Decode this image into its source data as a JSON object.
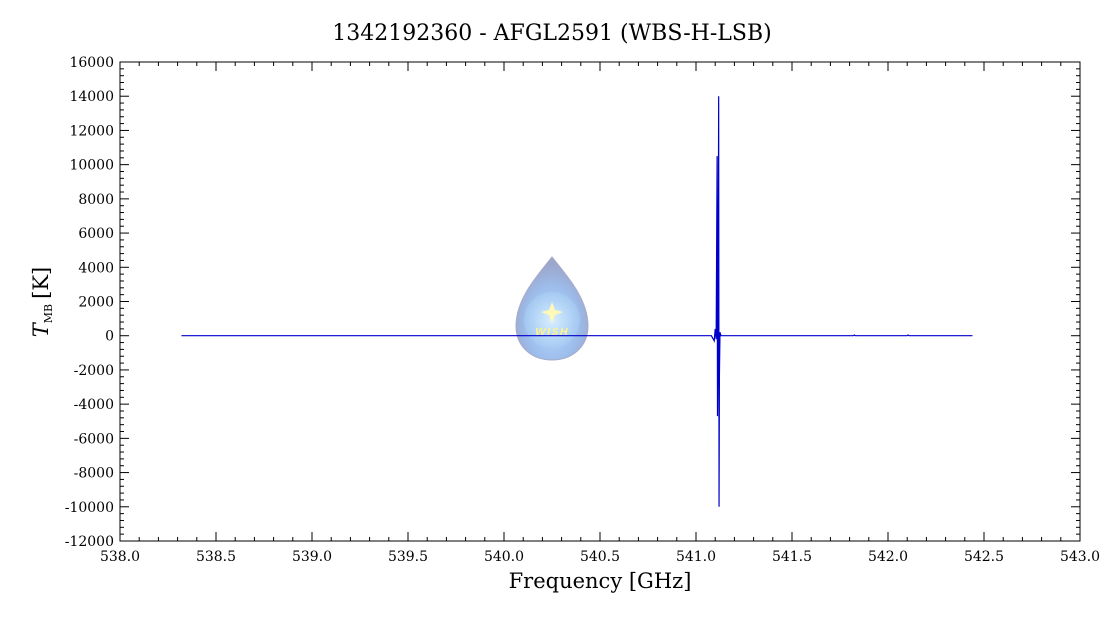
{
  "chart_data": {
    "type": "line",
    "title": "1342192360 - AFGL2591 (WBS-H-LSB)",
    "xlabel": "Frequency [GHz]",
    "ylabel_main": "T",
    "ylabel_sub": "MB",
    "ylabel_unit": "[K]",
    "xlim": [
      538.0,
      543.0
    ],
    "ylim": [
      -12000,
      16000
    ],
    "xticks": [
      538.0,
      538.5,
      539.0,
      539.5,
      540.0,
      540.5,
      541.0,
      541.5,
      542.0,
      542.5,
      543.0
    ],
    "xtick_labels": [
      "538.0",
      "538.5",
      "539.0",
      "539.5",
      "540.0",
      "540.5",
      "541.0",
      "541.5",
      "542.0",
      "542.5",
      "543.0"
    ],
    "yticks": [
      -12000,
      -10000,
      -8000,
      -6000,
      -4000,
      -2000,
      0,
      2000,
      4000,
      6000,
      8000,
      10000,
      12000,
      14000,
      16000
    ],
    "ytick_labels": [
      "-12000",
      "-10000",
      "-8000",
      "-6000",
      "-4000",
      "-2000",
      "0",
      "2000",
      "4000",
      "6000",
      "8000",
      "10000",
      "12000",
      "14000",
      "16000"
    ],
    "grid": false,
    "series": [
      {
        "color": "#0000cc",
        "x": [
          538.32,
          541.08,
          541.095,
          541.1,
          541.105,
          541.11,
          541.112,
          541.115,
          541.118,
          541.12,
          541.122,
          541.125,
          541.13,
          541.14,
          541.82,
          541.825,
          541.83,
          542.1,
          542.105,
          542.11,
          542.44
        ],
        "y": [
          0,
          0,
          -300,
          400,
          -200,
          10500,
          -4700,
          300,
          14000,
          -10000,
          -2300,
          200,
          0,
          0,
          0,
          40,
          0,
          0,
          40,
          0,
          0
        ]
      }
    ]
  },
  "watermark": {
    "text": "WISH"
  }
}
